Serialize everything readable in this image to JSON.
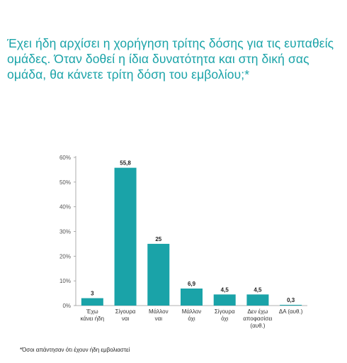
{
  "title": "Έχει ήδη αρχίσει η χορήγηση τρίτης δόσης για τις ευπαθείς ομάδες. Όταν δοθεί η ίδια δυνατότητα και στη δική σας ομάδα, θα κάνετε τρίτη δόση του εμβολίου;*",
  "footnote": "*Όσοι απάντησαν ότι έχουν ήδη εμβολιαστεί",
  "colors": {
    "bar": "#1aa3a8",
    "title": "#1aa3a8",
    "axis": "#999999",
    "grid": "#d9d9d9"
  },
  "chart_data": {
    "type": "bar",
    "categories": [
      [
        "Έχω",
        "κάνει ήδη"
      ],
      [
        "Σίγουρα",
        "ναι"
      ],
      [
        "Μάλλον",
        "ναι"
      ],
      [
        "Μάλλον",
        "όχι"
      ],
      [
        "Σίγουρα",
        "όχι"
      ],
      [
        "Δεν έχω",
        "αποφασίσει",
        "(αυθ.)"
      ],
      [
        "ΔΑ (αυθ.)"
      ]
    ],
    "values": [
      3,
      55.8,
      25,
      6.9,
      4.5,
      4.5,
      0.3
    ],
    "value_labels": [
      "3",
      "55,8",
      "25",
      "6,9",
      "4,5",
      "4,5",
      "0,3"
    ],
    "yticks": [
      "0%",
      "10%",
      "20%",
      "30%",
      "40%",
      "50%",
      "60%"
    ],
    "ylim": [
      0,
      60
    ],
    "grid": false
  }
}
